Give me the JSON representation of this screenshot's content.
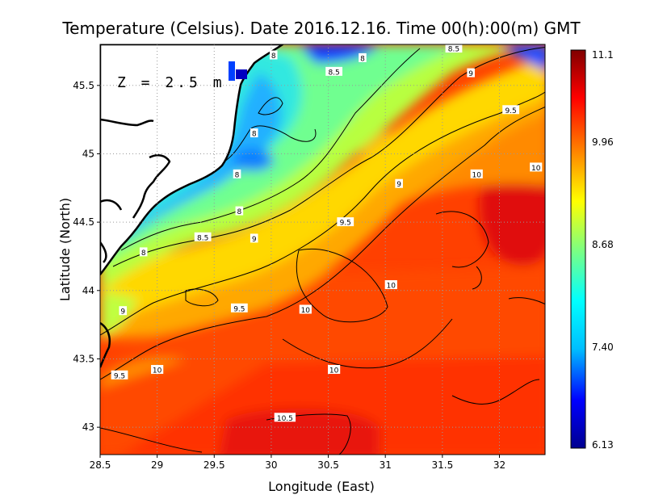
{
  "chart_data": {
    "type": "heatmap",
    "title": "Temperature (Celsius). Date 2016.12.16. Time 00(h):00(m)  GMT",
    "xlabel": "Longitude (East)",
    "ylabel": "Latitude (North)",
    "annotation": "Z = 2.5 m",
    "xlim": [
      28.5,
      32.4
    ],
    "ylim": [
      42.8,
      45.8
    ],
    "x_ticks": [
      28.5,
      29,
      29.5,
      30,
      30.5,
      31,
      31.5,
      32
    ],
    "x_tick_labels": [
      "28.5",
      "29",
      "29.5",
      "30",
      "30.5",
      "31",
      "31.5",
      "32"
    ],
    "y_ticks": [
      43,
      43.5,
      44,
      44.5,
      45,
      45.5
    ],
    "y_tick_labels": [
      "43",
      "43.5",
      "44",
      "44.5",
      "45",
      "45.5"
    ],
    "grid": true,
    "colorbar": {
      "min": 6.13,
      "max": 11.1,
      "tick_values": [
        11.1,
        9.96,
        8.68,
        7.4,
        6.13
      ],
      "tick_labels": [
        "11.1",
        "9.96",
        "8.68",
        "7.40",
        "6.13"
      ],
      "colormap": [
        "#00008f",
        "#0000ff",
        "#00bfff",
        "#00ffff",
        "#7fff7f",
        "#ffff00",
        "#ff8000",
        "#ff0000",
        "#800000"
      ]
    },
    "contour_levels": [
      8,
      8.5,
      9,
      9.5,
      10,
      10.5
    ],
    "contour_labels": [
      {
        "lon": 29.85,
        "lat": 45.15,
        "text": "8"
      },
      {
        "lon": 29.7,
        "lat": 44.85,
        "text": "8"
      },
      {
        "lon": 29.72,
        "lat": 44.58,
        "text": "8"
      },
      {
        "lon": 28.88,
        "lat": 44.28,
        "text": "8"
      },
      {
        "lon": 30.02,
        "lat": 45.72,
        "text": "8"
      },
      {
        "lon": 30.8,
        "lat": 45.7,
        "text": "8"
      },
      {
        "lon": 30.55,
        "lat": 45.6,
        "text": "8.5"
      },
      {
        "lon": 29.4,
        "lat": 44.39,
        "text": "8.5"
      },
      {
        "lon": 31.6,
        "lat": 45.77,
        "text": "8.5"
      },
      {
        "lon": 31.12,
        "lat": 44.78,
        "text": "9"
      },
      {
        "lon": 29.85,
        "lat": 44.38,
        "text": "9"
      },
      {
        "lon": 28.7,
        "lat": 43.85,
        "text": "9"
      },
      {
        "lon": 31.75,
        "lat": 45.59,
        "text": "9"
      },
      {
        "lon": 32.1,
        "lat": 45.32,
        "text": "9.5"
      },
      {
        "lon": 30.65,
        "lat": 44.5,
        "text": "9.5"
      },
      {
        "lon": 29.72,
        "lat": 43.87,
        "text": "9.5"
      },
      {
        "lon": 28.67,
        "lat": 43.38,
        "text": "9.5"
      },
      {
        "lon": 31.05,
        "lat": 44.04,
        "text": "10"
      },
      {
        "lon": 30.3,
        "lat": 43.86,
        "text": "10"
      },
      {
        "lon": 30.55,
        "lat": 43.42,
        "text": "10"
      },
      {
        "lon": 29.0,
        "lat": 43.42,
        "text": "10"
      },
      {
        "lon": 31.8,
        "lat": 44.85,
        "text": "10"
      },
      {
        "lon": 32.32,
        "lat": 44.9,
        "text": "10"
      },
      {
        "lon": 30.12,
        "lat": 43.07,
        "text": "10.5"
      }
    ]
  }
}
